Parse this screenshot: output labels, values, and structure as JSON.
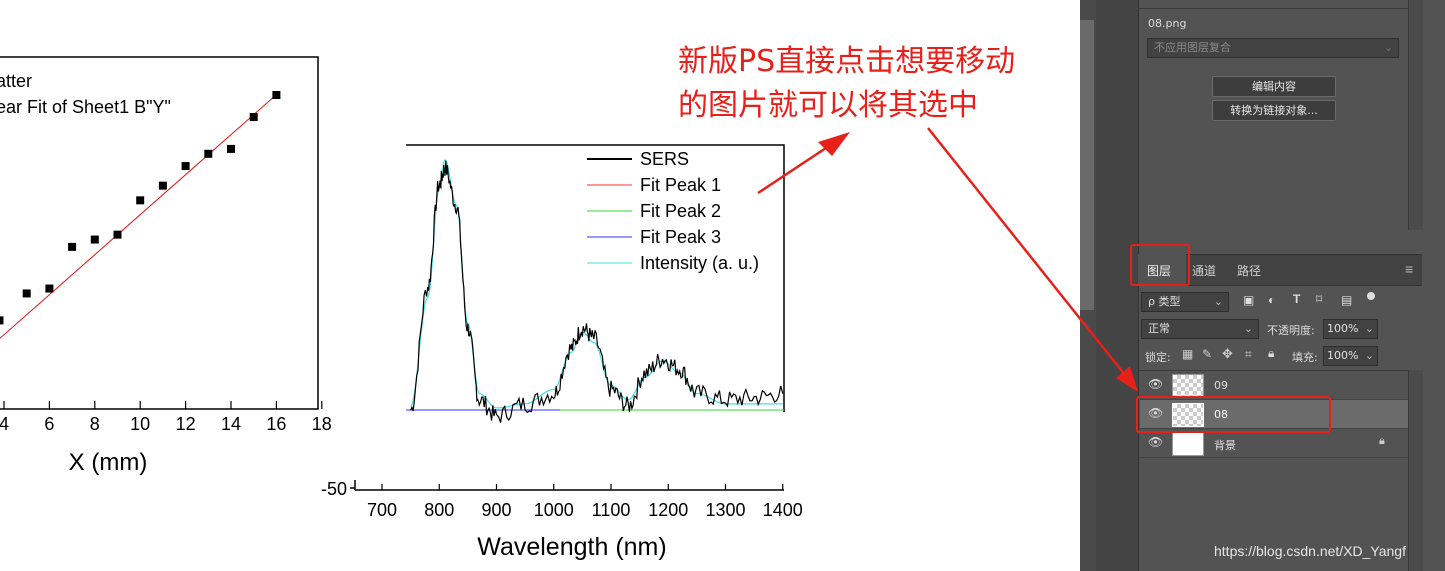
{
  "left_chart": {
    "legend": [
      "atter",
      "ear Fit of Sheet1 B\"Y\""
    ],
    "x_ticks": [
      "4",
      "6",
      "8",
      "10",
      "12",
      "14",
      "16",
      "18"
    ],
    "x_label": "X (mm)",
    "points": [
      [
        3.8,
        0.25
      ],
      [
        5,
        0.36
      ],
      [
        6,
        0.38
      ],
      [
        7,
        0.55
      ],
      [
        8,
        0.58
      ],
      [
        9,
        0.6
      ],
      [
        10,
        0.74
      ],
      [
        11,
        0.8
      ],
      [
        12,
        0.88
      ],
      [
        13,
        0.93
      ],
      [
        14,
        0.95
      ],
      [
        15,
        1.08
      ],
      [
        16,
        1.17
      ]
    ],
    "fit_color": "#e01010"
  },
  "right_chart": {
    "legend": [
      {
        "name": "SERS",
        "color": "#000000"
      },
      {
        "name": "Fit Peak 1",
        "color": "#ff3030"
      },
      {
        "name": "Fit Peak 2",
        "color": "#30dd30"
      },
      {
        "name": "Fit Peak 3",
        "color": "#3030ff"
      },
      {
        "name": "Intensity (a. u.)",
        "color": "#40e0e0"
      }
    ],
    "x_ticks": [
      "700",
      "800",
      "900",
      "1000",
      "1100",
      "1200",
      "1300",
      "1400"
    ],
    "y_tick": "-50",
    "x_label": "Wavelength (nm)"
  },
  "chart_data": [
    {
      "type": "scatter",
      "title": "",
      "xlabel": "X (mm)",
      "ylabel": "",
      "xlim": [
        3,
        18
      ],
      "series": [
        {
          "name": "atter",
          "x": [
            3.8,
            5,
            6,
            7,
            8,
            9,
            10,
            11,
            12,
            13,
            14,
            15,
            16
          ],
          "y": [
            0.25,
            0.36,
            0.38,
            0.55,
            0.58,
            0.6,
            0.74,
            0.8,
            0.88,
            0.93,
            0.95,
            1.08,
            1.17
          ]
        },
        {
          "name": "ear Fit of Sheet1 B\"Y\"",
          "x": [
            3,
            16
          ],
          "y": [
            0.17,
            1.17
          ]
        }
      ]
    },
    {
      "type": "line",
      "title": "",
      "xlabel": "Wavelength (nm)",
      "ylabel": "",
      "xlim": [
        700,
        1400
      ],
      "series": [
        {
          "name": "SERS",
          "x": [
            750,
            780,
            800,
            810,
            830,
            850,
            870,
            900,
            950,
            1000,
            1030,
            1050,
            1070,
            1100,
            1130,
            1160,
            1190,
            1220,
            1250,
            1300,
            1350,
            1400
          ],
          "y": [
            0,
            60,
            110,
            118,
            100,
            40,
            5,
            -3,
            3,
            8,
            30,
            40,
            35,
            10,
            2,
            18,
            25,
            20,
            8,
            5,
            6,
            8
          ]
        },
        {
          "name": "Fit Peak 1",
          "x": [
            740,
            800,
            850,
            900,
            1400
          ],
          "y": [
            0,
            0,
            0,
            0,
            0
          ]
        },
        {
          "name": "Fit Peak 2",
          "x": [
            1000,
            1050,
            1100,
            1400
          ],
          "y": [
            0,
            0,
            0,
            0
          ]
        },
        {
          "name": "Fit Peak 3",
          "x": [
            740,
            900,
            1100,
            1400
          ],
          "y": [
            0,
            0,
            0,
            0
          ]
        },
        {
          "name": "Intensity (a. u.)",
          "x": [
            750,
            780,
            800,
            810,
            830,
            850,
            870,
            900,
            950,
            1000,
            1030,
            1050,
            1070,
            1100,
            1130,
            1160,
            1190,
            1220,
            1250,
            1300,
            1400
          ],
          "y": [
            2,
            55,
            108,
            122,
            100,
            42,
            8,
            1,
            3,
            10,
            28,
            38,
            33,
            12,
            5,
            16,
            24,
            18,
            8,
            3,
            3
          ]
        }
      ]
    }
  ],
  "annotation": {
    "line1": "新版PS直接点击想要移动",
    "line2": "的图片就可以将其选中",
    "color": "#e8201a"
  },
  "ps": {
    "file_name": "08.png",
    "comp_select": "不应用图层复合",
    "edit_contents_button": "编辑内容",
    "convert_link_button": "转换为链接对象...",
    "tabs": [
      "图层",
      "通道",
      "路径"
    ],
    "filter_label": "ρ 类型",
    "blend_mode": "正常",
    "opacity_label": "不透明度:",
    "opacity_value": "100%",
    "lock_label": "锁定:",
    "fill_label": "填充:",
    "fill_value": "100%",
    "layers": [
      {
        "name": "09",
        "selected": false
      },
      {
        "name": "08",
        "selected": true
      },
      {
        "name": "背景",
        "selected": false,
        "locked": true
      }
    ]
  },
  "watermark": "https://blog.csdn.net/XD_Yangf"
}
